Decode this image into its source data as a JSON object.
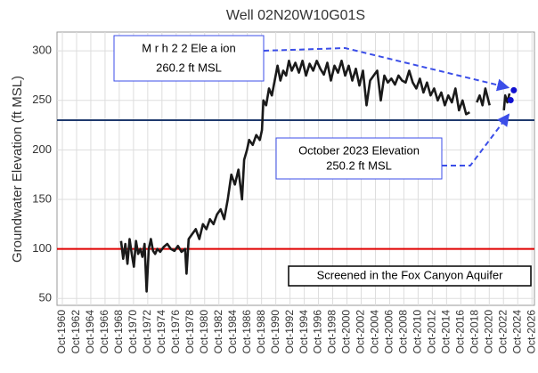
{
  "chart_data": {
    "type": "line",
    "title": "Well 02N20W10G01S",
    "y_label": "Groundwater Elevation (ft MSL)",
    "xlim": [
      1960.0,
      2027.1
    ],
    "ylim": [
      43,
      319
    ],
    "yticks": [
      50,
      100,
      150,
      200,
      250,
      300
    ],
    "xticks": [
      {
        "value": 1960.75,
        "label": "Oct-1960"
      },
      {
        "value": 1962.75,
        "label": "Oct-1962"
      },
      {
        "value": 1964.75,
        "label": "Oct-1964"
      },
      {
        "value": 1966.75,
        "label": "Oct-1966"
      },
      {
        "value": 1968.75,
        "label": "Oct-1968"
      },
      {
        "value": 1970.75,
        "label": "Oct-1970"
      },
      {
        "value": 1972.75,
        "label": "Oct-1972"
      },
      {
        "value": 1974.75,
        "label": "Oct-1974"
      },
      {
        "value": 1976.75,
        "label": "Oct-1976"
      },
      {
        "value": 1978.75,
        "label": "Oct-1978"
      },
      {
        "value": 1980.75,
        "label": "Oct-1980"
      },
      {
        "value": 1982.75,
        "label": "Oct-1982"
      },
      {
        "value": 1984.75,
        "label": "Oct-1984"
      },
      {
        "value": 1986.75,
        "label": "Oct-1986"
      },
      {
        "value": 1988.75,
        "label": "Oct-1988"
      },
      {
        "value": 1990.75,
        "label": "Oct-1990"
      },
      {
        "value": 1992.75,
        "label": "Oct-1992"
      },
      {
        "value": 1994.75,
        "label": "Oct-1994"
      },
      {
        "value": 1996.75,
        "label": "Oct-1996"
      },
      {
        "value": 1998.75,
        "label": "Oct-1998"
      },
      {
        "value": 2000.75,
        "label": "Oct-2000"
      },
      {
        "value": 2002.75,
        "label": "Oct-2002"
      },
      {
        "value": 2004.75,
        "label": "Oct-2004"
      },
      {
        "value": 2006.75,
        "label": "Oct-2006"
      },
      {
        "value": 2008.75,
        "label": "Oct-2008"
      },
      {
        "value": 2010.75,
        "label": "Oct-2010"
      },
      {
        "value": 2012.75,
        "label": "Oct-2012"
      },
      {
        "value": 2014.75,
        "label": "Oct-2014"
      },
      {
        "value": 2016.75,
        "label": "Oct-2016"
      },
      {
        "value": 2018.75,
        "label": "Oct-2018"
      },
      {
        "value": 2020.75,
        "label": "Oct-2020"
      },
      {
        "value": 2022.75,
        "label": "Oct-2022"
      },
      {
        "value": 2024.75,
        "label": "Oct-2024"
      },
      {
        "value": 2026.75,
        "label": "Oct-2026"
      }
    ],
    "grid": true,
    "x": [
      1969.0,
      1969.3,
      1969.6,
      1969.9,
      1970.2,
      1970.5,
      1970.8,
      1971.1,
      1971.4,
      1971.7,
      1972.0,
      1972.3,
      1972.6,
      1972.9,
      1973.2,
      1973.5,
      1973.8,
      1974.1,
      1974.5,
      1975.0,
      1975.5,
      1976.0,
      1976.5,
      1977.0,
      1977.5,
      1978.0,
      1978.2,
      1978.5,
      1979.0,
      1979.5,
      1980.0,
      1980.5,
      1981.0,
      1981.5,
      1982.0,
      1982.5,
      1983.0,
      1983.5,
      1984.0,
      1984.5,
      1985.0,
      1985.5,
      1986.0,
      1986.3,
      1986.7,
      1987.0,
      1987.5,
      1988.0,
      1988.5,
      1988.8,
      1989.0,
      1989.4,
      1989.8,
      1990.2,
      1990.6,
      1991.0,
      1991.4,
      1991.8,
      1992.2,
      1992.6,
      1993.0,
      1993.5,
      1994.0,
      1994.5,
      1995.0,
      1995.5,
      1996.0,
      1996.5,
      1997.0,
      1997.5,
      1998.0,
      1998.5,
      1999.0,
      1999.5,
      2000.0,
      2000.5,
      2001.0,
      2001.5,
      2002.0,
      2002.5,
      2003.0,
      2003.5,
      2004.0,
      2004.5,
      2005.0,
      2005.5,
      2006.0,
      2006.5,
      2007.0,
      2007.5,
      2008.0,
      2008.5,
      2009.0,
      2009.5,
      2010.0,
      2010.5,
      2011.0,
      2011.5,
      2012.0,
      2012.5,
      2013.0,
      2013.5,
      2014.0,
      2014.5,
      2015.0,
      2015.5,
      2016.0,
      2016.5,
      2017.0,
      2017.5,
      2018.0,
      2018.4,
      2019.0,
      2019.4,
      2019.8,
      2020.2,
      2020.8,
      2021.8,
      2022.8,
      2023.0,
      2023.3,
      2023.6
    ],
    "series": [
      {
        "name": "Groundwater Elevation",
        "color": "#1a1a1a",
        "values": [
          108,
          90,
          105,
          85,
          110,
          95,
          82,
          108,
          95,
          100,
          92,
          105,
          57,
          100,
          110,
          98,
          95,
          100,
          97,
          102,
          105,
          100,
          98,
          103,
          97,
          100,
          75,
          110,
          115,
          120,
          110,
          125,
          120,
          130,
          125,
          135,
          140,
          130,
          150,
          175,
          165,
          180,
          150,
          190,
          200,
          210,
          205,
          215,
          210,
          220,
          250,
          245,
          262,
          255,
          270,
          285,
          270,
          280,
          275,
          290,
          280,
          288,
          278,
          290,
          275,
          287,
          280,
          290,
          282,
          276,
          288,
          270,
          285,
          278,
          290,
          275,
          285,
          270,
          282,
          265,
          280,
          245,
          270,
          275,
          280,
          250,
          275,
          268,
          272,
          266,
          275,
          270,
          268,
          280,
          268,
          262,
          272,
          258,
          268,
          255,
          262,
          250,
          258,
          245,
          255,
          248,
          262,
          240,
          250,
          236,
          238,
          null,
          248,
          255,
          245,
          262,
          245,
          null,
          240,
          255,
          248,
          257
        ]
      }
    ],
    "hlines": [
      {
        "value": 100,
        "color": "#e00000"
      },
      {
        "value": 230,
        "color": "#1f3a6e"
      }
    ],
    "annotations": [
      {
        "label": "M  r h 2 2  Ele a ion",
        "value_label": "260.2 ft MSL",
        "x": 2024.2,
        "y": 260.2,
        "color": "#1010d0"
      },
      {
        "label": "October 2023 Elevation",
        "value_label": "250.2 ft MSL",
        "x": 2023.75,
        "y": 250.2,
        "color": "#1010d0"
      }
    ],
    "note": "Screened in the Fox Canyon Aquifer"
  }
}
